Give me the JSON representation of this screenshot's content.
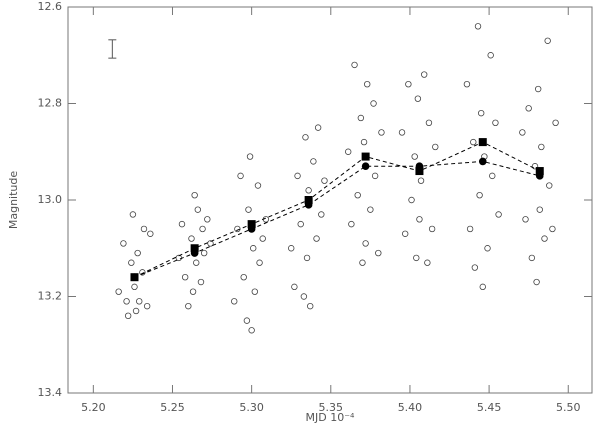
{
  "chart_data": {
    "type": "scatter",
    "xlabel": "MJD 10⁻⁴",
    "ylabel": "Magnitude",
    "xlim": [
      5.184,
      5.515
    ],
    "ylim": [
      13.4,
      12.6
    ],
    "xticks": [
      {
        "value": 5.2,
        "label": "5.20"
      },
      5.25,
      {
        "value": 5.3,
        "label": "5.30"
      },
      5.35,
      {
        "value": 5.4,
        "label": "5.40"
      },
      5.45,
      {
        "value": 5.5,
        "label": "5.50"
      }
    ],
    "yticks": [
      12.6,
      12.8,
      {
        "value": 13,
        "label": "13.0"
      },
      13.2,
      13.4
    ],
    "error_bar": {
      "x": 5.212,
      "y": 12.687,
      "error": 0.019
    },
    "series": [
      {
        "marker": "circle-open",
        "color": "#444444",
        "x": [
          5.216,
          5.219,
          5.221,
          5.222,
          5.224,
          5.225,
          5.226,
          5.227,
          5.228,
          5.229,
          5.231,
          5.232,
          5.234,
          5.236,
          5.254,
          5.256,
          5.258,
          5.26,
          5.262,
          5.263,
          5.264,
          5.265,
          5.266,
          5.268,
          5.269,
          5.27,
          5.272,
          5.274,
          5.289,
          5.291,
          5.293,
          5.295,
          5.297,
          5.298,
          5.299,
          5.3,
          5.301,
          5.302,
          5.304,
          5.305,
          5.307,
          5.309,
          5.325,
          5.327,
          5.329,
          5.331,
          5.333,
          5.334,
          5.335,
          5.336,
          5.337,
          5.339,
          5.341,
          5.342,
          5.344,
          5.346,
          5.361,
          5.363,
          5.365,
          5.367,
          5.369,
          5.37,
          5.371,
          5.372,
          5.373,
          5.375,
          5.377,
          5.378,
          5.38,
          5.382,
          5.395,
          5.397,
          5.399,
          5.401,
          5.403,
          5.404,
          5.405,
          5.406,
          5.407,
          5.409,
          5.411,
          5.412,
          5.414,
          5.416,
          5.436,
          5.438,
          5.44,
          5.441,
          5.443,
          5.444,
          5.445,
          5.446,
          5.447,
          5.449,
          5.451,
          5.452,
          5.454,
          5.456,
          5.471,
          5.473,
          5.475,
          5.477,
          5.479,
          5.48,
          5.481,
          5.482,
          5.483,
          5.485,
          5.487,
          5.488,
          5.49,
          5.492
        ],
        "values": [
          13.19,
          13.09,
          13.21,
          13.24,
          13.13,
          13.03,
          13.18,
          13.23,
          13.11,
          13.21,
          13.15,
          13.06,
          13.22,
          13.07,
          13.12,
          13.05,
          13.16,
          13.22,
          13.08,
          13.19,
          12.99,
          13.13,
          13.02,
          13.17,
          13.06,
          13.11,
          13.04,
          13.09,
          13.21,
          13.06,
          12.95,
          13.16,
          13.25,
          13.02,
          12.91,
          13.27,
          13.1,
          13.19,
          12.97,
          13.13,
          13.08,
          13.04,
          13.1,
          13.18,
          12.95,
          13.05,
          13.2,
          12.87,
          13.12,
          12.98,
          13.22,
          12.92,
          13.08,
          12.85,
          13.03,
          12.96,
          12.9,
          13.05,
          12.72,
          12.99,
          12.83,
          13.13,
          12.88,
          13.09,
          12.76,
          13.02,
          12.8,
          12.95,
          13.11,
          12.86,
          12.86,
          13.07,
          12.76,
          13,
          12.91,
          13.12,
          12.79,
          13.04,
          12.96,
          12.74,
          13.13,
          12.84,
          13.06,
          12.89,
          12.76,
          13.06,
          12.88,
          13.14,
          12.64,
          12.99,
          12.82,
          13.18,
          12.91,
          13.1,
          12.7,
          12.95,
          12.84,
          13.03,
          12.86,
          13.04,
          12.81,
          13.12,
          12.93,
          13.17,
          12.77,
          13.02,
          12.89,
          13.08,
          12.67,
          12.97,
          13.06,
          12.84
        ]
      },
      {
        "marker": "square",
        "line": "dashed",
        "color": "#000000",
        "x": [
          5.226,
          5.264,
          5.3,
          5.336,
          5.372,
          5.406,
          5.446,
          5.482
        ],
        "values": [
          13.16,
          13.1,
          13.05,
          13,
          12.91,
          12.94,
          12.88,
          12.94
        ]
      },
      {
        "marker": "circle",
        "line": "dashed",
        "color": "#000000",
        "x": [
          5.226,
          5.264,
          5.3,
          5.336,
          5.372,
          5.406,
          5.446,
          5.482
        ],
        "values": [
          13.16,
          13.11,
          13.06,
          13.01,
          12.93,
          12.93,
          12.92,
          12.95
        ]
      }
    ]
  }
}
